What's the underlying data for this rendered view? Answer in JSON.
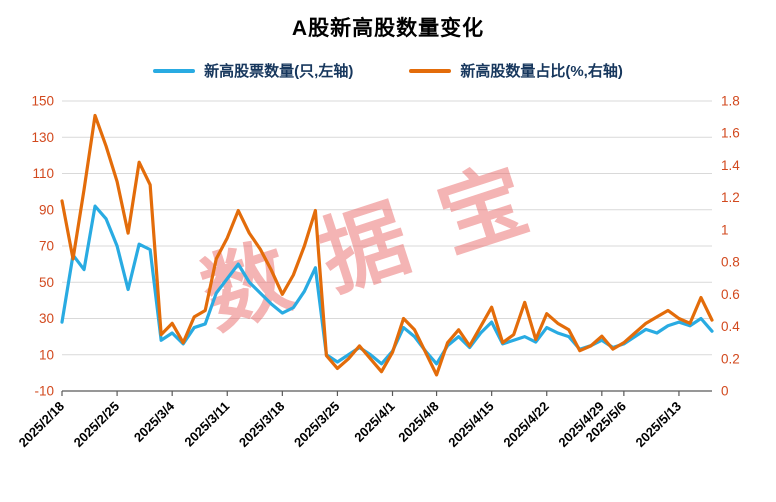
{
  "chart": {
    "title": "A股新高股数量变化",
    "watermark": "数据宝"
  },
  "chart_data": {
    "type": "line",
    "title": "A股新高股数量变化",
    "legend_position": "top",
    "grid": true,
    "grid_color": "#d9d9d9",
    "tick_label_color": "#d2491e",
    "watermark_color": "rgba(234,106,106,0.5)",
    "x_tick_labels": [
      "2025/2/18",
      "2025/2/25",
      "2025/3/4",
      "2025/3/11",
      "2025/3/18",
      "2025/3/25",
      "2025/4/1",
      "2025/4/8",
      "2025/4/15",
      "2025/4/22",
      "2025/4/29",
      "2025/5/6",
      "2025/5/13"
    ],
    "x": [
      "2025/2/18",
      "2025/2/19",
      "2025/2/20",
      "2025/2/21",
      "2025/2/24",
      "2025/2/25",
      "2025/2/26",
      "2025/2/27",
      "2025/2/28",
      "2025/3/3",
      "2025/3/4",
      "2025/3/5",
      "2025/3/6",
      "2025/3/7",
      "2025/3/10",
      "2025/3/11",
      "2025/3/12",
      "2025/3/13",
      "2025/3/14",
      "2025/3/17",
      "2025/3/18",
      "2025/3/19",
      "2025/3/20",
      "2025/3/21",
      "2025/3/24",
      "2025/3/25",
      "2025/3/26",
      "2025/3/27",
      "2025/3/28",
      "2025/3/31",
      "2025/4/1",
      "2025/4/2",
      "2025/4/3",
      "2025/4/7",
      "2025/4/8",
      "2025/4/9",
      "2025/4/10",
      "2025/4/11",
      "2025/4/14",
      "2025/4/15",
      "2025/4/16",
      "2025/4/17",
      "2025/4/18",
      "2025/4/21",
      "2025/4/22",
      "2025/4/23",
      "2025/4/24",
      "2025/4/25",
      "2025/4/28",
      "2025/4/29",
      "2025/4/30",
      "2025/5/6",
      "2025/5/7",
      "2025/5/8",
      "2025/5/9",
      "2025/5/12",
      "2025/5/13",
      "2025/5/14",
      "2025/5/15",
      "2025/5/16"
    ],
    "left_axis": {
      "min": -10,
      "max": 150,
      "step": 20
    },
    "right_axis": {
      "min": 0,
      "max": 1.8,
      "step": 0.2
    },
    "series": [
      {
        "name": "新高股票数量(只,左轴)",
        "axis": "left",
        "color": "#29abe2",
        "values": [
          28,
          65,
          57,
          92,
          85,
          70,
          46,
          71,
          68,
          18,
          22,
          16,
          25,
          27,
          44,
          52,
          60,
          50,
          44,
          38,
          33,
          36,
          45,
          58,
          10,
          6,
          10,
          14,
          10,
          5,
          12,
          25,
          20,
          12,
          5,
          15,
          20,
          14,
          22,
          28,
          16,
          18,
          20,
          17,
          25,
          22,
          20,
          13,
          15,
          18,
          14,
          16,
          20,
          24,
          22,
          26,
          28,
          26,
          30,
          23
        ]
      },
      {
        "name": "新高股数量占比(%,右轴)",
        "axis": "right",
        "color": "#e36c0a",
        "values": [
          1.18,
          0.82,
          1.25,
          1.71,
          1.52,
          1.3,
          0.98,
          1.42,
          1.28,
          0.35,
          0.42,
          0.3,
          0.46,
          0.5,
          0.82,
          0.95,
          1.12,
          0.98,
          0.88,
          0.75,
          0.6,
          0.72,
          0.9,
          1.12,
          0.22,
          0.14,
          0.2,
          0.28,
          0.2,
          0.12,
          0.24,
          0.45,
          0.38,
          0.24,
          0.1,
          0.3,
          0.38,
          0.28,
          0.4,
          0.52,
          0.3,
          0.35,
          0.55,
          0.32,
          0.48,
          0.42,
          0.38,
          0.25,
          0.28,
          0.34,
          0.26,
          0.3,
          0.36,
          0.42,
          0.46,
          0.5,
          0.45,
          0.42,
          0.58,
          0.44
        ]
      }
    ]
  }
}
